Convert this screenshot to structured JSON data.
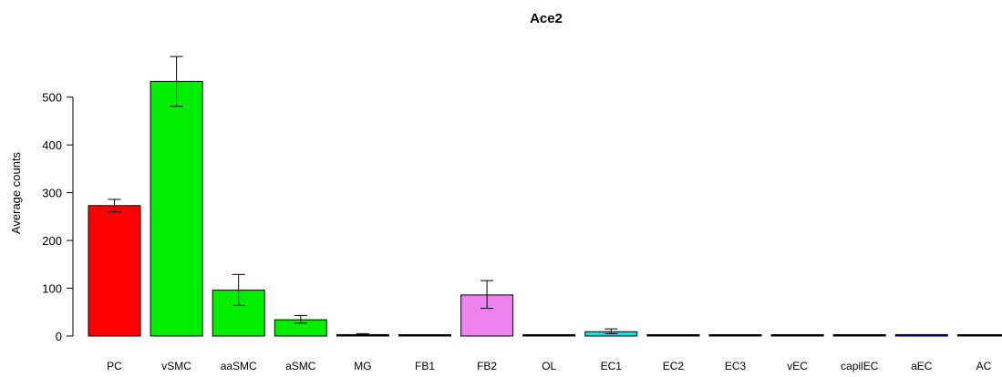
{
  "chart_data": {
    "type": "bar",
    "title": "Ace2",
    "xlabel": "",
    "ylabel": "Average counts",
    "ylim": [
      0,
      550
    ],
    "yticks": [
      0,
      100,
      200,
      300,
      400,
      500
    ],
    "grid": false,
    "categories": [
      "PC",
      "vSMC",
      "aaSMC",
      "aSMC",
      "MG",
      "FB1",
      "FB2",
      "OL",
      "EC1",
      "EC2",
      "EC3",
      "vEC",
      "capilEC",
      "aEC",
      "AC"
    ],
    "values": [
      273,
      533,
      96,
      34,
      3,
      1,
      86,
      1,
      9,
      1,
      1,
      1,
      2,
      3,
      1
    ],
    "error_low": [
      260,
      481,
      64,
      27,
      1,
      0,
      58,
      0,
      5,
      0,
      0,
      0,
      1,
      2,
      0
    ],
    "error_high": [
      286,
      585,
      129,
      43,
      5,
      2,
      116,
      2,
      15,
      2,
      2,
      2,
      3,
      4,
      2
    ],
    "colors": [
      "#ff0000",
      "#00ee00",
      "#00ee00",
      "#00ee00",
      "#000000",
      "#000000",
      "#ee82ee",
      "#000000",
      "#00e5e5",
      "#000000",
      "#000000",
      "#000000",
      "#000000",
      "#0000ff",
      "#000000"
    ]
  }
}
